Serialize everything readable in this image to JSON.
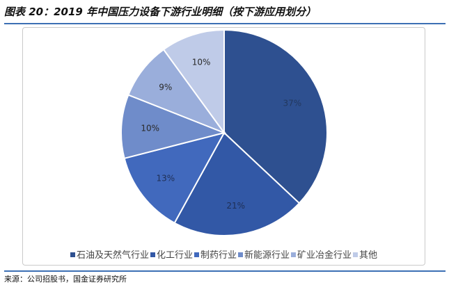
{
  "title": "图表 20：2019 年中国压力设备下游行业明细（按下游应用划分）",
  "source": "来源：公司招股书，国金证券研究所",
  "chart_data": {
    "type": "pie",
    "title": "",
    "legend_position": "bottom",
    "start_angle_deg": 0,
    "direction": "clockwise",
    "slices": [
      {
        "label": "石油及天然气行业",
        "value": 37,
        "display": "37%",
        "color": "#2e5090",
        "label_color": "#23385e"
      },
      {
        "label": "化工行业",
        "value": 21,
        "display": "21%",
        "color": "#3258a6",
        "label_color": "#1f2f55"
      },
      {
        "label": "制药行业",
        "value": 13,
        "display": "13%",
        "color": "#4169bd",
        "label_color": "#1f2f55"
      },
      {
        "label": "新能源行业",
        "value": 10,
        "display": "10%",
        "color": "#6f8cca",
        "label_color": "#2a2a2a"
      },
      {
        "label": "矿业冶金行业",
        "value": 9,
        "display": "9%",
        "color": "#9aaedb",
        "label_color": "#2a2a2a"
      },
      {
        "label": "其他",
        "value": 10,
        "display": "10%",
        "color": "#bfcbe8",
        "label_color": "#2a2a2a"
      }
    ]
  }
}
